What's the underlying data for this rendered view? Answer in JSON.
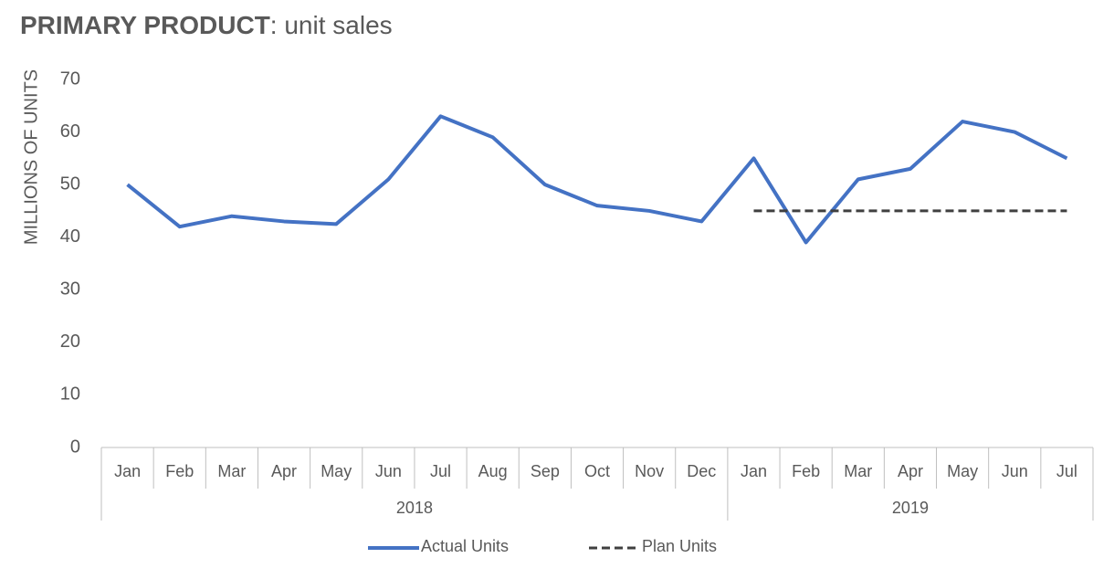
{
  "chart_data": {
    "type": "line",
    "title": [
      "PRIMARY PRODUCT",
      ": unit sales"
    ],
    "y_label": "MILLIONS OF UNITS",
    "groups": [
      {
        "name": "2018",
        "categories": [
          "Jan",
          "Feb",
          "Mar",
          "Apr",
          "May",
          "Jun",
          "Jul",
          "Aug",
          "Sep",
          "Oct",
          "Nov",
          "Dec"
        ]
      },
      {
        "name": "2019",
        "categories": [
          "Jan",
          "Feb",
          "Mar",
          "Apr",
          "May",
          "Jun",
          "Jul"
        ]
      }
    ],
    "series": [
      {
        "name": "Actual Units",
        "color": "#4472c4",
        "dash": false,
        "values": [
          50,
          42,
          44,
          43,
          42.5,
          51,
          63,
          59,
          50,
          46,
          45,
          43,
          55,
          39,
          51,
          53,
          62,
          60,
          55
        ]
      },
      {
        "name": "Plan Units",
        "color": "#404040",
        "dash": true,
        "values": [
          null,
          null,
          null,
          null,
          null,
          null,
          null,
          null,
          null,
          null,
          null,
          null,
          45,
          45,
          45,
          45,
          45,
          45,
          45
        ]
      }
    ],
    "ylim": [
      0,
      70
    ],
    "yticks": [
      0,
      10,
      20,
      30,
      40,
      50,
      60,
      70
    ],
    "grid": false,
    "legend": "bottom"
  }
}
